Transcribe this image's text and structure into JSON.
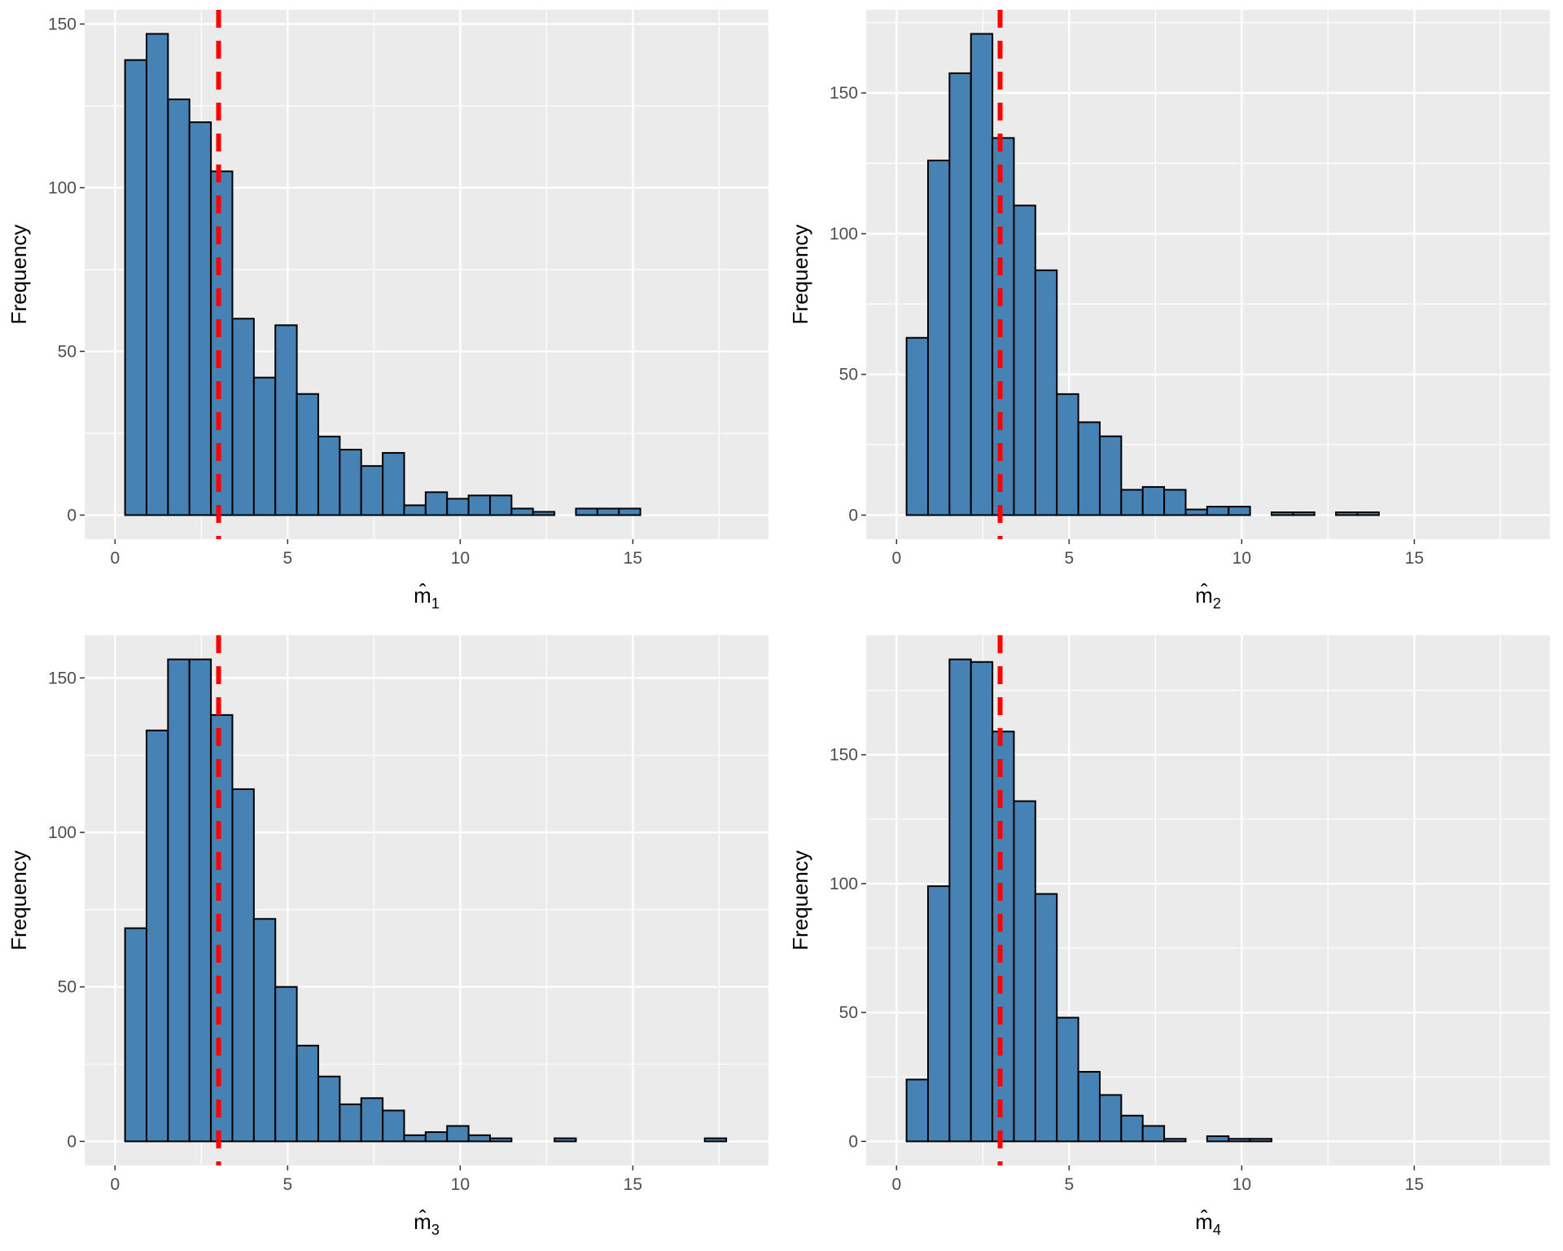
{
  "colors": {
    "panel_bg": "#EBEBEB",
    "grid": "#FFFFFF",
    "bar_fill": "#4682B4",
    "bar_stroke": "#000000",
    "ref_line": "#FF0000"
  },
  "chart_data": [
    {
      "type": "bar",
      "title": "",
      "xlabel": "m̂",
      "xlabel_sub": "1",
      "ylabel": "Frequency",
      "bin_start": 0.29,
      "bin_width": 0.622,
      "values": [
        139,
        147,
        127,
        120,
        105,
        60,
        42,
        58,
        37,
        24,
        20,
        15,
        19,
        3,
        7,
        5,
        6,
        6,
        2,
        1,
        0,
        2,
        2,
        2,
        0,
        0,
        0,
        0
      ],
      "xlim": [
        -0.88,
        18.93
      ],
      "ylim": [
        -7.35,
        154.35
      ],
      "xticks": [
        0,
        5,
        10,
        15
      ],
      "yticks": [
        0,
        50,
        100,
        150
      ],
      "vline": 3,
      "grid": true
    },
    {
      "type": "bar",
      "title": "",
      "xlabel": "m̂",
      "xlabel_sub": "2",
      "ylabel": "Frequency",
      "bin_start": 0.29,
      "bin_width": 0.622,
      "values": [
        63,
        126,
        157,
        171,
        134,
        110,
        87,
        43,
        33,
        28,
        9,
        10,
        9,
        2,
        3,
        3,
        0,
        1,
        1,
        0,
        1,
        1,
        0,
        0,
        0,
        0,
        0,
        0
      ],
      "xlim": [
        -0.88,
        18.93
      ],
      "ylim": [
        -8.55,
        179.55
      ],
      "xticks": [
        0,
        5,
        10,
        15
      ],
      "yticks": [
        0,
        50,
        100,
        150
      ],
      "vline": 3,
      "grid": true
    },
    {
      "type": "bar",
      "title": "",
      "xlabel": "m̂",
      "xlabel_sub": "3",
      "ylabel": "Frequency",
      "bin_start": 0.29,
      "bin_width": 0.622,
      "values": [
        69,
        133,
        156,
        156,
        138,
        114,
        72,
        50,
        31,
        21,
        12,
        14,
        10,
        2,
        3,
        5,
        2,
        1,
        0,
        0,
        1,
        0,
        0,
        0,
        0,
        0,
        0,
        1
      ],
      "xlim": [
        -0.88,
        18.93
      ],
      "ylim": [
        -7.8,
        163.8
      ],
      "xticks": [
        0,
        5,
        10,
        15
      ],
      "yticks": [
        0,
        50,
        100,
        150
      ],
      "vline": 3,
      "grid": true
    },
    {
      "type": "bar",
      "title": "",
      "xlabel": "m̂",
      "xlabel_sub": "4",
      "ylabel": "Frequency",
      "bin_start": 0.29,
      "bin_width": 0.622,
      "values": [
        24,
        99,
        187,
        186,
        159,
        132,
        96,
        48,
        27,
        18,
        10,
        6,
        1,
        0,
        2,
        1,
        1,
        0,
        0,
        0,
        0,
        0,
        0,
        0,
        0,
        0,
        0,
        0
      ],
      "xlim": [
        -0.88,
        18.93
      ],
      "ylim": [
        -9.35,
        196.35
      ],
      "xticks": [
        0,
        5,
        10,
        15
      ],
      "yticks": [
        0,
        50,
        100,
        150
      ],
      "vline": 3,
      "grid": true
    }
  ]
}
